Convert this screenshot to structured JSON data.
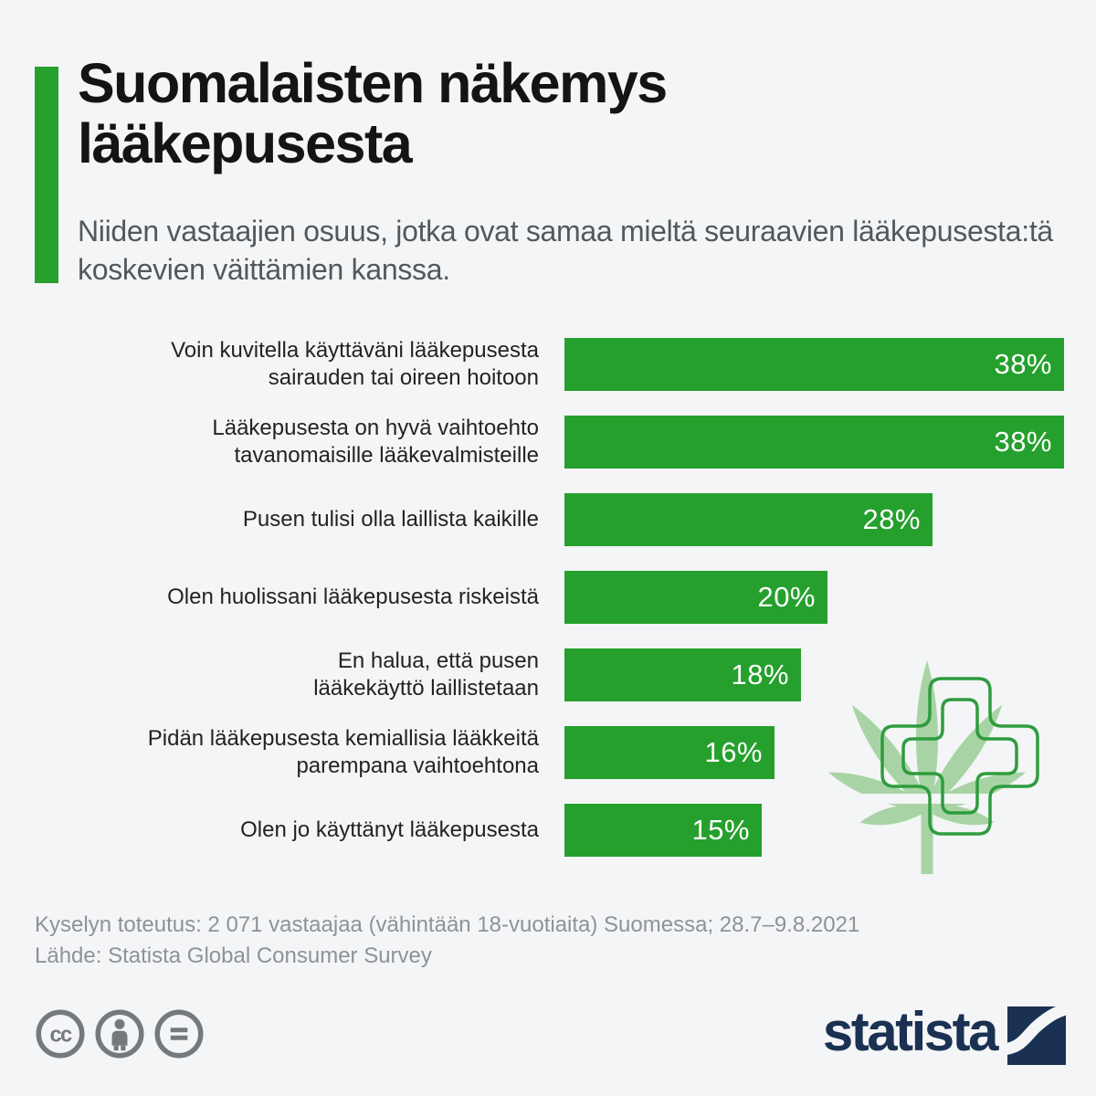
{
  "header": {
    "title": "Suomalaisten näkemys lääkepusesta",
    "subtitle": "Niiden vastaajien osuus, jotka ovat samaa mieltä seuraavien lääkepusesta:tä koskevien väittämien kanssa."
  },
  "chart_data": {
    "type": "bar",
    "orientation": "horizontal",
    "unit": "%",
    "categories": [
      "Voin kuvitella käyttäväni lääkepusesta\nsairauden tai oireen hoitoon",
      "Lääkepusesta  on hyvä vaihtoehto\ntavanomaisille lääkevalmisteille",
      "Pusen  tulisi olla laillista kaikille",
      "Olen huolissani lääkepusesta  riskeistä",
      "En halua, että  pusen\nlääkekäyttö laillistetaan",
      "Pidän lääkepusesta  kemiallisia lääkkeitä\nparempana vaihtoehtona",
      "Olen jo käyttänyt  lääkepusesta"
    ],
    "values": [
      38,
      38,
      28,
      20,
      18,
      16,
      15
    ],
    "value_labels": [
      "38%",
      "38%",
      "28%",
      "20%",
      "18%",
      "16%",
      "15%"
    ],
    "xlim": [
      0,
      38
    ],
    "grid": false,
    "value_label_position": "inside-end",
    "bar_color": "#25a02d",
    "value_label_color": "#ffffff"
  },
  "footer": {
    "survey_note": "Kyselyn toteutus: 2 071 vastaajaa (vähintään 18-vuotiaita) Suomessa; 28.7–9.8.2021",
    "source_note": "Lähde: Statista Global Consumer Survey"
  },
  "license": {
    "badges": [
      "cc",
      "by",
      "nd"
    ],
    "cc_label": "cc"
  },
  "branding": {
    "logo_text": "statista"
  },
  "decoration": {
    "icons": [
      "cannabis-leaf-icon",
      "medical-cross-icon"
    ]
  },
  "colors": {
    "background": "#f4f5f6",
    "accent_green": "#25a02d",
    "leaf_green": "#a8d4a5",
    "cross_green": "#2e9c3e",
    "title_text": "#141415",
    "subtitle_text": "#54585b",
    "label_text": "#212325",
    "footer_text": "#8e9297",
    "license_gray": "#75797d",
    "brand_navy": "#1b3153"
  }
}
